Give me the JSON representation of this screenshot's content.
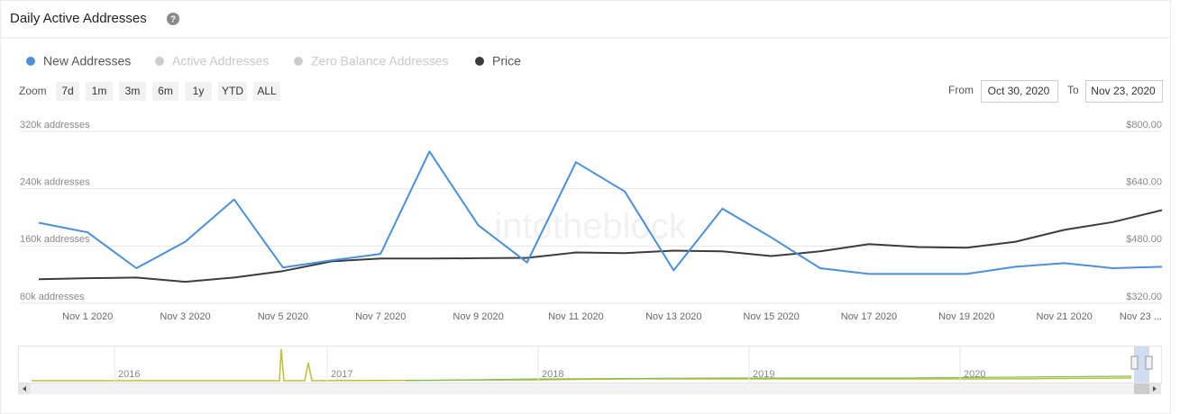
{
  "chart_data": {
    "type": "line",
    "title": "Daily Active Addresses",
    "help_icon": "?",
    "watermark": "intotheblock",
    "zoom_label": "Zoom",
    "zoom_buttons": [
      "7d",
      "1m",
      "3m",
      "6m",
      "1y",
      "YTD",
      "ALL"
    ],
    "from_label": "From",
    "from_date": "Oct 30, 2020",
    "to_label": "To",
    "to_date": "Nov 23, 2020",
    "x": [
      "2020-10-31",
      "2020-11-01",
      "2020-11-02",
      "2020-11-03",
      "2020-11-04",
      "2020-11-05",
      "2020-11-06",
      "2020-11-07",
      "2020-11-08",
      "2020-11-09",
      "2020-11-10",
      "2020-11-11",
      "2020-11-12",
      "2020-11-13",
      "2020-11-14",
      "2020-11-15",
      "2020-11-16",
      "2020-11-17",
      "2020-11-18",
      "2020-11-19",
      "2020-11-20",
      "2020-11-21",
      "2020-11-22",
      "2020-11-23"
    ],
    "xlim": [
      "2020-10-31",
      "2020-11-23"
    ],
    "xticks": [
      {
        "value": "2020-11-01",
        "label": "Nov 1 2020"
      },
      {
        "value": "2020-11-03",
        "label": "Nov 3 2020"
      },
      {
        "value": "2020-11-05",
        "label": "Nov 5 2020"
      },
      {
        "value": "2020-11-07",
        "label": "Nov 7 2020"
      },
      {
        "value": "2020-11-09",
        "label": "Nov 9 2020"
      },
      {
        "value": "2020-11-11",
        "label": "Nov 11 2020"
      },
      {
        "value": "2020-11-13",
        "label": "Nov 13 2020"
      },
      {
        "value": "2020-11-15",
        "label": "Nov 15 2020"
      },
      {
        "value": "2020-11-17",
        "label": "Nov 17 2020"
      },
      {
        "value": "2020-11-19",
        "label": "Nov 19 2020"
      },
      {
        "value": "2020-11-21",
        "label": "Nov 21 2020"
      },
      {
        "value": "2020-11-23",
        "label": "Nov 23 ..."
      }
    ],
    "ylim": [
      80000,
      320000
    ],
    "yticks": [
      {
        "value": 80000,
        "label": "80k addresses"
      },
      {
        "value": 160000,
        "label": "160k addresses"
      },
      {
        "value": 240000,
        "label": "240k addresses"
      },
      {
        "value": 320000,
        "label": "320k addresses"
      }
    ],
    "y2lim": [
      320,
      800
    ],
    "y2ticks": [
      {
        "value": 320,
        "label": "$320.00"
      },
      {
        "value": 480,
        "label": "$480.00"
      },
      {
        "value": 640,
        "label": "$640.00"
      },
      {
        "value": 800,
        "label": "$800.00"
      }
    ],
    "grid": true,
    "series": [
      {
        "name": "New Addresses",
        "color": "#4a8fdc",
        "visible": true,
        "axis": "y",
        "values": [
          192500,
          179000,
          129000,
          166000,
          225000,
          130000,
          140000,
          149000,
          292000,
          189000,
          137000,
          277000,
          236000,
          126000,
          212000,
          172000,
          129000,
          121000,
          121000,
          121000,
          131000,
          136000,
          129000,
          131000
        ]
      },
      {
        "name": "Active Addresses",
        "color": "#cccccc",
        "visible": false
      },
      {
        "name": "Zero Balance Addresses",
        "color": "#cccccc",
        "visible": false
      },
      {
        "name": "Price",
        "color": "#3a3c40",
        "visible": true,
        "axis": "y2",
        "values": [
          387,
          390,
          392,
          380,
          392,
          410,
          437,
          445,
          445,
          446,
          447,
          462,
          460,
          467,
          465,
          452,
          465,
          485,
          477,
          475,
          492,
          525,
          547,
          580
        ]
      }
    ],
    "navigator_labels": [
      "2016",
      "2017",
      "2018",
      "2019",
      "2020"
    ]
  }
}
